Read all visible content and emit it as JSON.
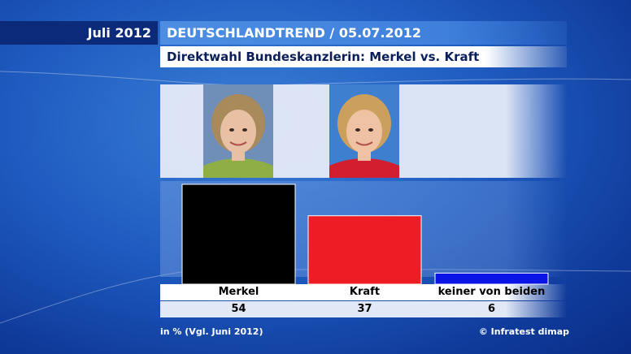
{
  "header": {
    "date_label": "Juli 2012",
    "title": "DEUTSCHLANDTREND / 05.07.2012",
    "subtitle": "Direktwahl Bundeskanzlerin: Merkel vs. Kraft"
  },
  "footer": {
    "note": "in % (Vgl. Juni 2012)",
    "source": "© Infratest dimap"
  },
  "chart_data": {
    "type": "bar",
    "categories": [
      "Merkel",
      "Kraft",
      "keiner von beiden"
    ],
    "values": [
      54,
      37,
      6
    ],
    "value_labels": [
      "54",
      "37",
      "6"
    ],
    "colors": [
      "#000000",
      "#ee1c24",
      "#0a14e6"
    ],
    "unit": "%",
    "ylim": [
      0,
      60
    ],
    "grid": false,
    "legend": "none"
  },
  "photos": [
    {
      "name": "Merkel",
      "bg": "#6f8fb8",
      "hair": "#a98a5a",
      "skin": "#e8c0a4",
      "cloth": "#8fae45"
    },
    {
      "name": "Kraft",
      "bg": "#3f7fd0",
      "hair": "#caa05c",
      "skin": "#efc2a4",
      "cloth": "#d21e2e"
    }
  ]
}
